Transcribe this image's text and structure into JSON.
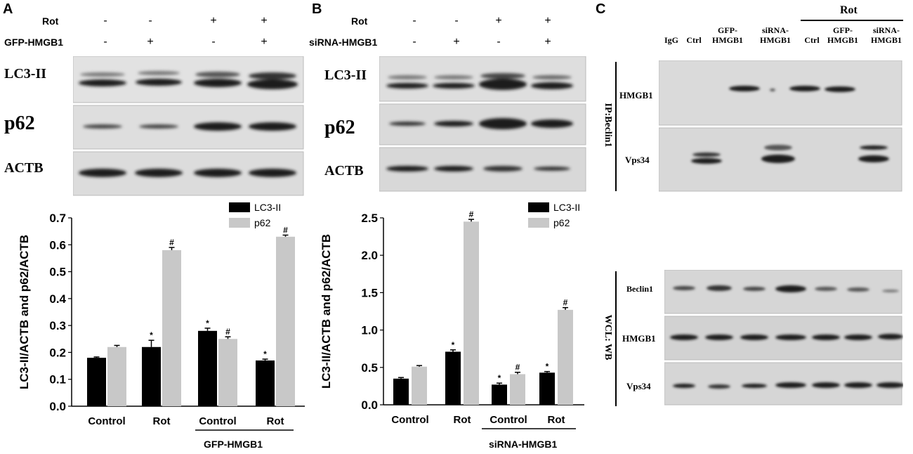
{
  "panels": {
    "A": {
      "label": "A",
      "rows": [
        {
          "name": "Rot",
          "signs": [
            "-",
            "-",
            "+",
            "+"
          ]
        },
        {
          "name": "GFP-HMGB1",
          "signs": [
            "-",
            "+",
            "-",
            "+"
          ]
        }
      ],
      "blots": [
        "LC3-II",
        "p62",
        "ACTB"
      ],
      "group_label": "GFP-HMGB1"
    },
    "B": {
      "label": "B",
      "rows": [
        {
          "name": "Rot",
          "signs": [
            "-",
            "-",
            "+",
            "+"
          ]
        },
        {
          "name": "siRNA-HMGB1",
          "signs": [
            "-",
            "+",
            "-",
            "+"
          ]
        }
      ],
      "blots": [
        "LC3-II",
        "p62",
        "ACTB"
      ],
      "group_label": "siRNA-HMGB1"
    },
    "C": {
      "label": "C",
      "rot_label": "Rot",
      "lanes": [
        {
          "l1": "IgG",
          "l2": ""
        },
        {
          "l1": "Ctrl",
          "l2": ""
        },
        {
          "l1": "GFP-",
          "l2": "HMGB1"
        },
        {
          "l1": "siRNA-",
          "l2": "HMGB1"
        },
        {
          "l1": "Ctrl",
          "l2": ""
        },
        {
          "l1": "GFP-",
          "l2": "HMGB1"
        },
        {
          "l1": "siRNA-",
          "l2": "HMGB1"
        }
      ],
      "ip_label": "IP:Beclin1",
      "ip_blots": [
        "HMGB1",
        "Vps34"
      ],
      "wcl_label": "WCL: WB",
      "wcl_blots": [
        "Beclin1",
        "HMGB1",
        "Vps34"
      ]
    }
  },
  "chart_data": [
    {
      "type": "bar",
      "panel": "A",
      "categories": [
        "Control",
        "Rot",
        "Control",
        "Rot"
      ],
      "series": [
        {
          "name": "LC3-II",
          "values": [
            0.18,
            0.22,
            0.28,
            0.17
          ],
          "errors": [
            0.003,
            0.025,
            0.01,
            0.005
          ],
          "marks": [
            "",
            "*",
            "*",
            "*"
          ],
          "color": "#000000"
        },
        {
          "name": "p62",
          "values": [
            0.22,
            0.58,
            0.25,
            0.63
          ],
          "errors": [
            0.006,
            0.01,
            0.008,
            0.006
          ],
          "marks": [
            "",
            "#",
            "#",
            "#"
          ],
          "color": "#c8c8c8"
        }
      ],
      "ylabel": "LC3-II/ACTB and p62/ACTB",
      "ylim": [
        0,
        0.7
      ],
      "yticks": [
        "0.0",
        "0.1",
        "0.2",
        "0.3",
        "0.4",
        "0.5",
        "0.6",
        "0.7"
      ],
      "legend": "top-right"
    },
    {
      "type": "bar",
      "panel": "B",
      "categories": [
        "Control",
        "Rot",
        "Control",
        "Rot"
      ],
      "series": [
        {
          "name": "LC3-II",
          "values": [
            0.35,
            0.71,
            0.27,
            0.43
          ],
          "errors": [
            0.015,
            0.025,
            0.02,
            0.015
          ],
          "marks": [
            "",
            "*",
            "*",
            "*"
          ],
          "color": "#000000"
        },
        {
          "name": "p62",
          "values": [
            0.51,
            2.45,
            0.41,
            1.27
          ],
          "errors": [
            0.015,
            0.03,
            0.025,
            0.03
          ],
          "marks": [
            "",
            "#",
            "#",
            "#"
          ],
          "color": "#c8c8c8"
        }
      ],
      "ylabel": "LC3-II/ACTB and p62/ACTB",
      "ylim": [
        0,
        2.5
      ],
      "yticks": [
        "0.0",
        "0.5",
        "1.0",
        "1.5",
        "2.0",
        "2.5"
      ],
      "legend": "top-right"
    }
  ]
}
